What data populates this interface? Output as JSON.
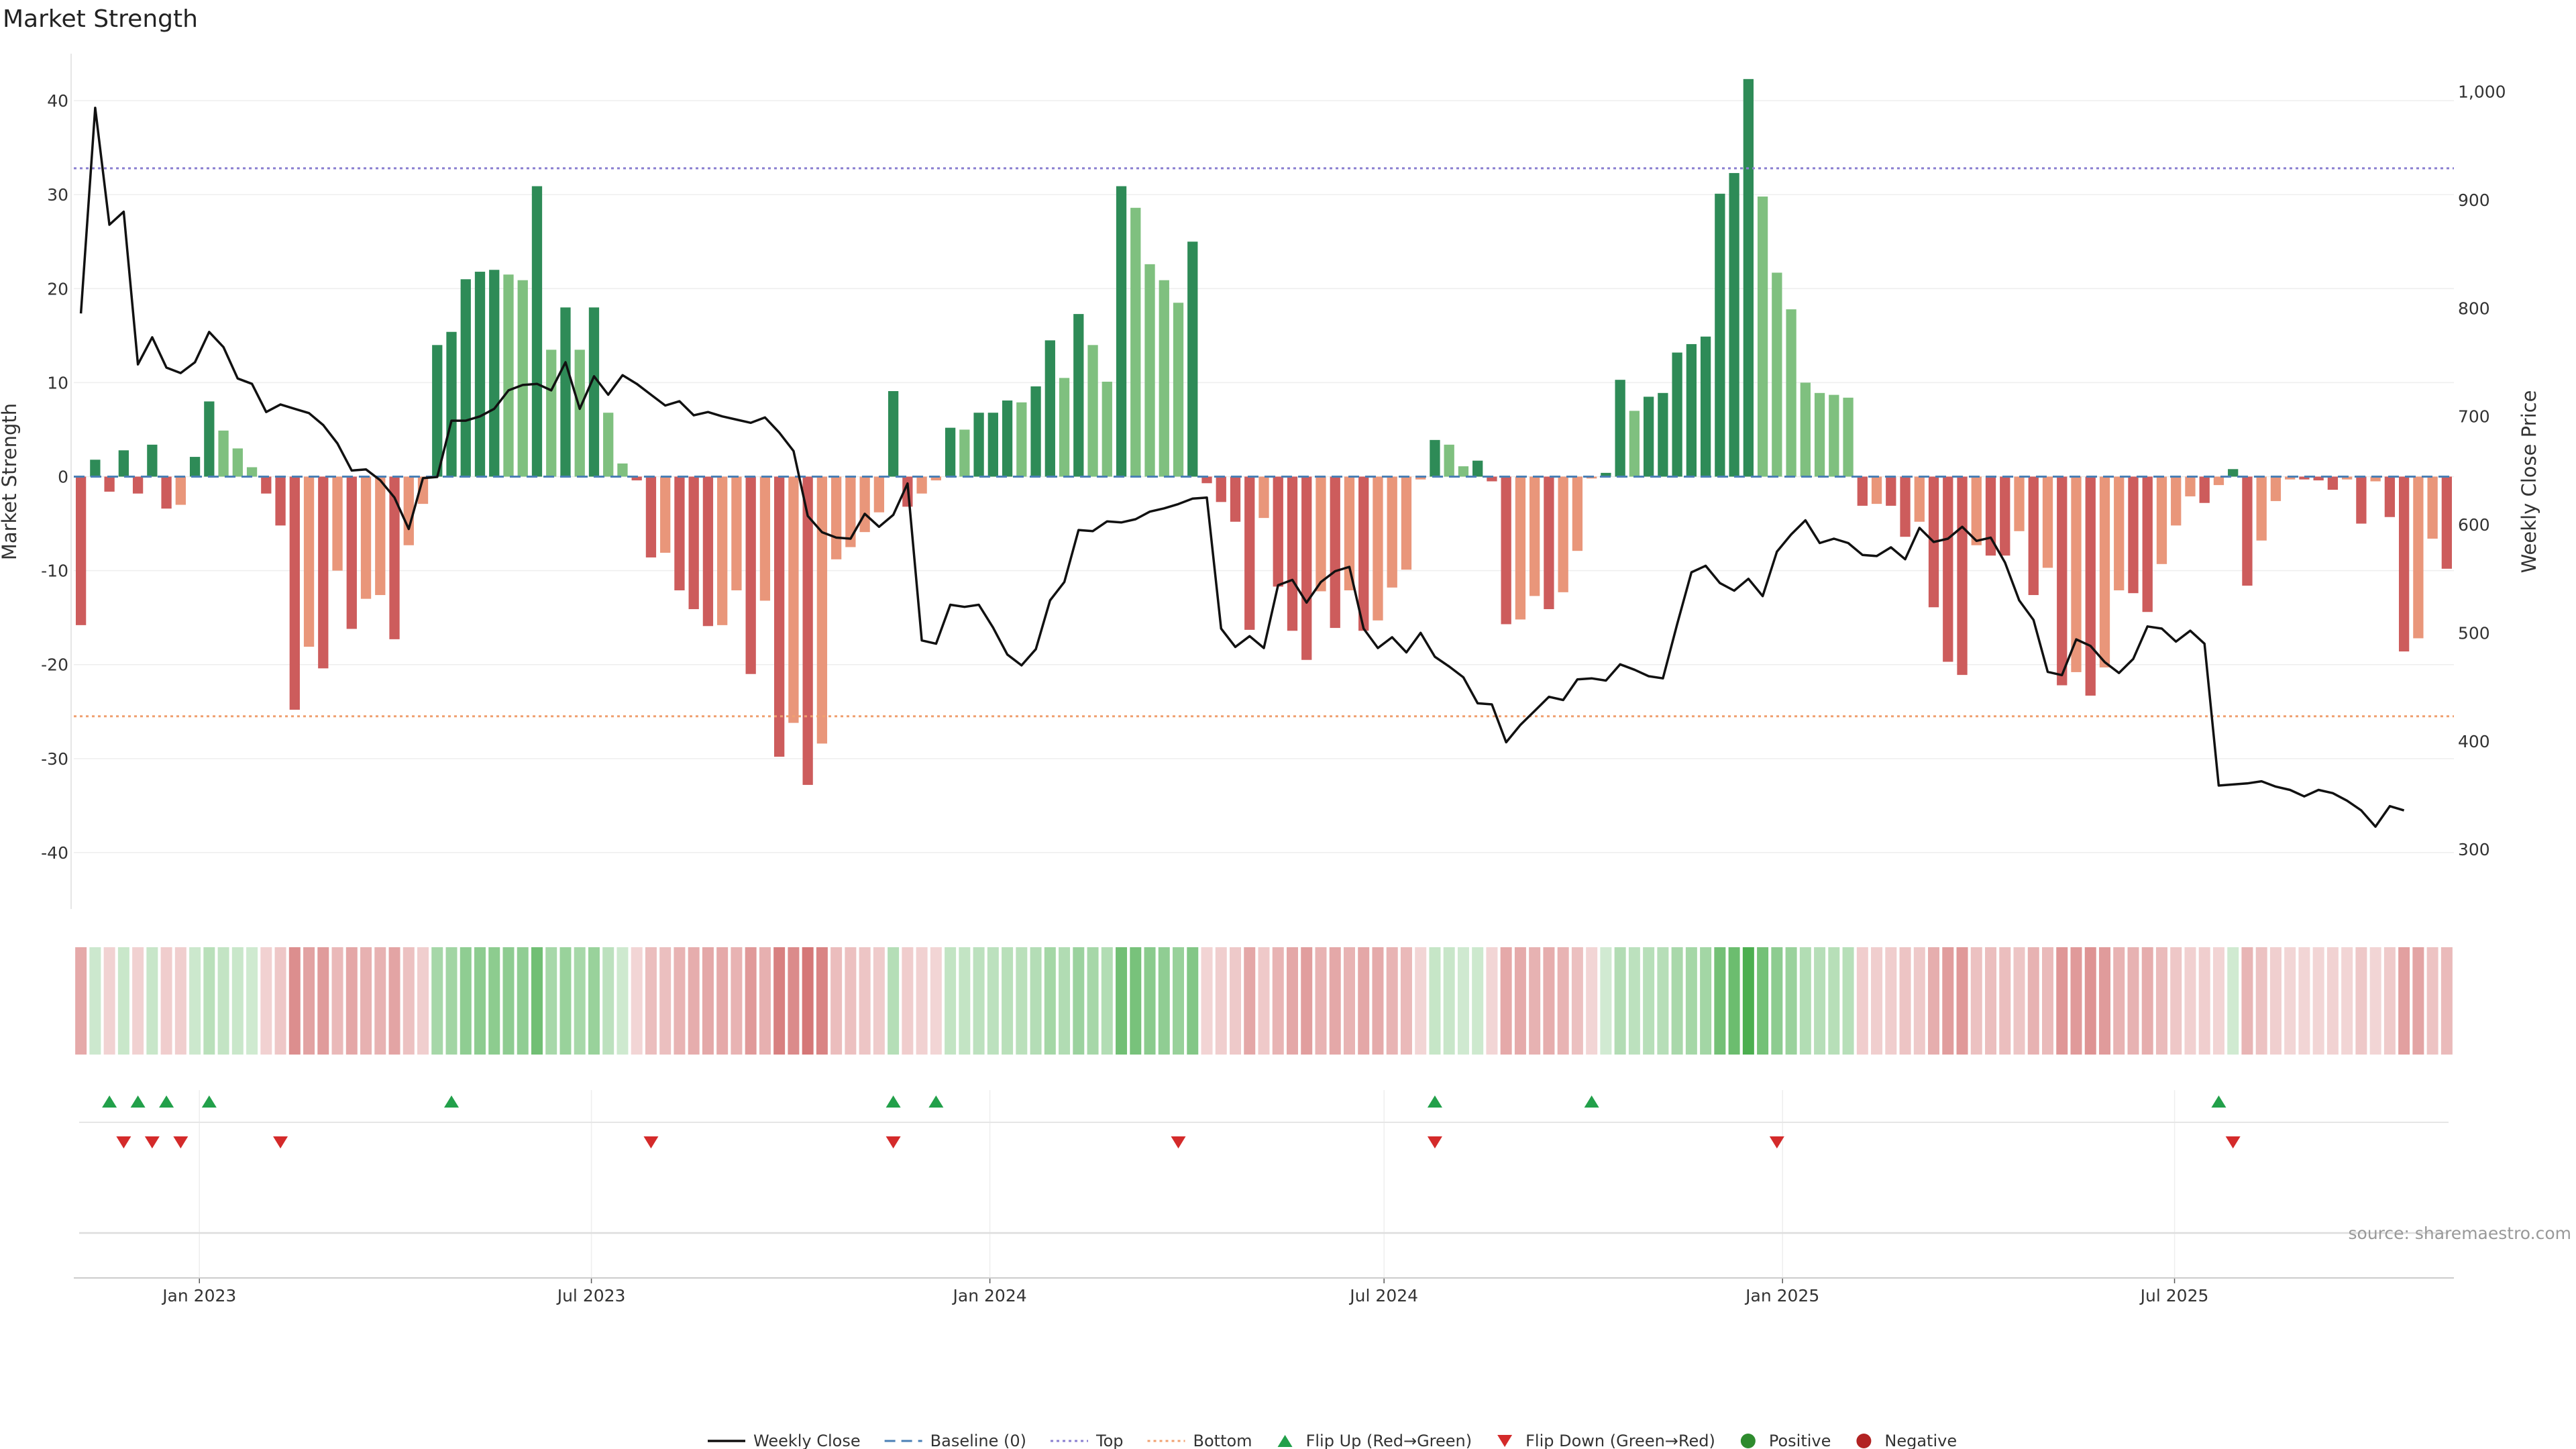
{
  "chart_data": {
    "type": "bar",
    "title": "Market Strength",
    "ylabel": "Market Strength",
    "ylabel_right": "Weekly Close Price",
    "ylim": [
      -46,
      45
    ],
    "ylim_right": [
      245,
      1035
    ],
    "yticks": [
      40,
      30,
      20,
      10,
      0,
      -10,
      -20,
      -30,
      -40
    ],
    "yticks_right": [
      1000,
      900,
      800,
      700,
      600,
      500,
      400,
      300
    ],
    "ytick_labels_right": [
      "1,000",
      "900",
      "800",
      "700",
      "600",
      "500",
      "400",
      "300"
    ],
    "x_start": "2022-11-04",
    "x_end": "2025-11-07",
    "xticks": [
      {
        "date": "2023-01-01",
        "label": "Jan 2023"
      },
      {
        "date": "2023-07-01",
        "label": "Jul 2023"
      },
      {
        "date": "2024-01-01",
        "label": "Jan 2024"
      },
      {
        "date": "2024-07-01",
        "label": "Jul 2024"
      },
      {
        "date": "2025-01-01",
        "label": "Jan 2025"
      },
      {
        "date": "2025-07-01",
        "label": "Jul 2025"
      }
    ],
    "grid": true,
    "legend_position": "bottom",
    "colors": {
      "strong_positive": "#2e8b57",
      "weak_positive": "#7fc07f",
      "strong_negative": "#cd5c5c",
      "weak_negative": "#e9967a",
      "price_line": "#111111",
      "baseline": "#4a7fb5",
      "top": "#8a7fd0",
      "bottom": "#f0a070",
      "flip_up": "#22a04a",
      "flip_down": "#d42a2a",
      "positive_dot": "#2e8b2e",
      "negative_dot": "#b22222"
    },
    "reference_lines": {
      "baseline": 0,
      "top": 32.8,
      "bottom": -25.5
    },
    "strength": [
      -15.8,
      1.8,
      -1.6,
      2.8,
      -1.8,
      3.4,
      -3.4,
      -3,
      2.1,
      8,
      4.9,
      3,
      1,
      -1.8,
      -5.2,
      -24.8,
      -18.1,
      -20.4,
      -10,
      -16.2,
      -13,
      -12.6,
      -17.3,
      -7.3,
      -2.9,
      14,
      15.4,
      21,
      21.8,
      22,
      21.5,
      20.9,
      30.9,
      13.5,
      18,
      13.5,
      18,
      6.8,
      1.4,
      -0.4,
      -8.6,
      -8.1,
      -12.1,
      -14.1,
      -15.9,
      -15.8,
      -12.1,
      -21,
      -13.2,
      -29.8,
      -26.2,
      -32.8,
      -28.4,
      -8.8,
      -7.5,
      -5.9,
      -3.8,
      9.1,
      -3.2,
      -1.8,
      -0.4,
      5.2,
      5,
      6.8,
      6.8,
      8.1,
      7.9,
      9.6,
      14.5,
      10.5,
      17.3,
      14,
      10.1,
      30.9,
      28.6,
      22.6,
      20.9,
      18.5,
      25,
      -0.7,
      -2.7,
      -4.8,
      -16.3,
      -4.4,
      -11.7,
      -16.4,
      -19.5,
      -12.2,
      -16.1,
      -12.1,
      -16.4,
      -15.3,
      -11.8,
      -9.9,
      -0.3,
      3.9,
      3.4,
      1.1,
      1.7,
      -0.5,
      -15.7,
      -15.2,
      -12.7,
      -14.1,
      -12.3,
      -7.9,
      -0.2,
      0.4,
      10.3,
      7,
      8.5,
      8.9,
      13.2,
      14.1,
      14.9,
      30.1,
      32.3,
      42.3,
      29.8,
      21.7,
      17.8,
      10,
      8.9,
      8.7,
      8.4,
      -3.1,
      -2.9,
      -3.1,
      -6.4,
      -4.8,
      -13.9,
      -19.7,
      -21.1,
      -7.3,
      -8.4,
      -8.4,
      -5.8,
      -12.6,
      -9.7,
      -22.2,
      -20.8,
      -23.3,
      -20.3,
      -12.1,
      -12.4,
      -14.4,
      -9.3,
      -5.2,
      -2.1,
      -2.8,
      -0.9,
      0.8,
      -11.6,
      -6.8,
      -2.6,
      -0.3,
      -0.3,
      -0.4,
      -1.4,
      -0.3,
      -5,
      -0.5,
      -4.3,
      -18.6,
      -17.2,
      -6.6,
      -9.8
    ],
    "weekly_close": [
      795,
      985,
      877,
      889,
      748,
      773,
      745,
      740,
      750,
      778,
      764,
      735,
      730,
      704,
      711,
      707,
      703,
      692,
      675,
      650,
      651,
      641,
      625,
      596,
      643,
      644,
      696,
      696,
      700,
      707,
      724,
      729,
      730,
      724,
      750,
      707,
      737,
      720,
      738,
      730,
      720,
      710,
      714,
      701,
      704,
      700,
      697,
      694,
      699,
      685,
      668,
      608,
      593,
      588,
      587,
      610,
      598,
      609,
      638,
      493,
      490,
      526,
      524,
      526,
      505,
      480,
      470,
      485,
      530,
      547,
      595,
      594,
      603,
      602,
      605,
      612,
      615,
      619,
      624,
      625,
      504,
      487,
      497,
      486,
      544,
      549,
      528,
      547,
      557,
      561,
      504,
      486,
      496,
      482,
      500,
      478,
      469,
      459,
      435,
      434,
      399,
      415,
      428,
      441,
      438,
      457,
      458,
      456,
      471,
      466,
      460,
      458,
      508,
      556,
      562,
      546,
      539,
      550,
      534,
      575,
      591,
      604,
      583,
      587,
      583,
      572,
      571,
      579,
      568,
      597,
      584,
      587,
      598,
      585,
      588,
      565,
      530,
      512,
      464,
      461,
      494,
      488,
      473,
      463,
      476,
      506,
      504,
      492,
      502,
      490,
      359,
      360,
      361,
      363,
      358,
      355,
      349,
      355,
      352,
      345,
      336,
      321,
      340,
      336
    ],
    "flips_up": [
      2,
      4,
      6,
      9,
      26,
      57,
      60,
      95,
      106,
      150
    ],
    "flips_down": [
      3,
      5,
      7,
      14,
      40,
      57,
      77,
      95,
      119,
      151
    ],
    "legend": [
      {
        "key": "weekly_close",
        "label": "Weekly Close"
      },
      {
        "key": "baseline",
        "label": "Baseline (0)"
      },
      {
        "key": "top",
        "label": "Top"
      },
      {
        "key": "bottom",
        "label": "Bottom"
      },
      {
        "key": "flip_up",
        "label": "Flip Up (Red→Green)"
      },
      {
        "key": "flip_down",
        "label": "Flip Down (Green→Red)"
      },
      {
        "key": "positive",
        "label": "Positive"
      },
      {
        "key": "negative",
        "label": "Negative"
      }
    ],
    "source": "source: sharemaestro.com"
  }
}
